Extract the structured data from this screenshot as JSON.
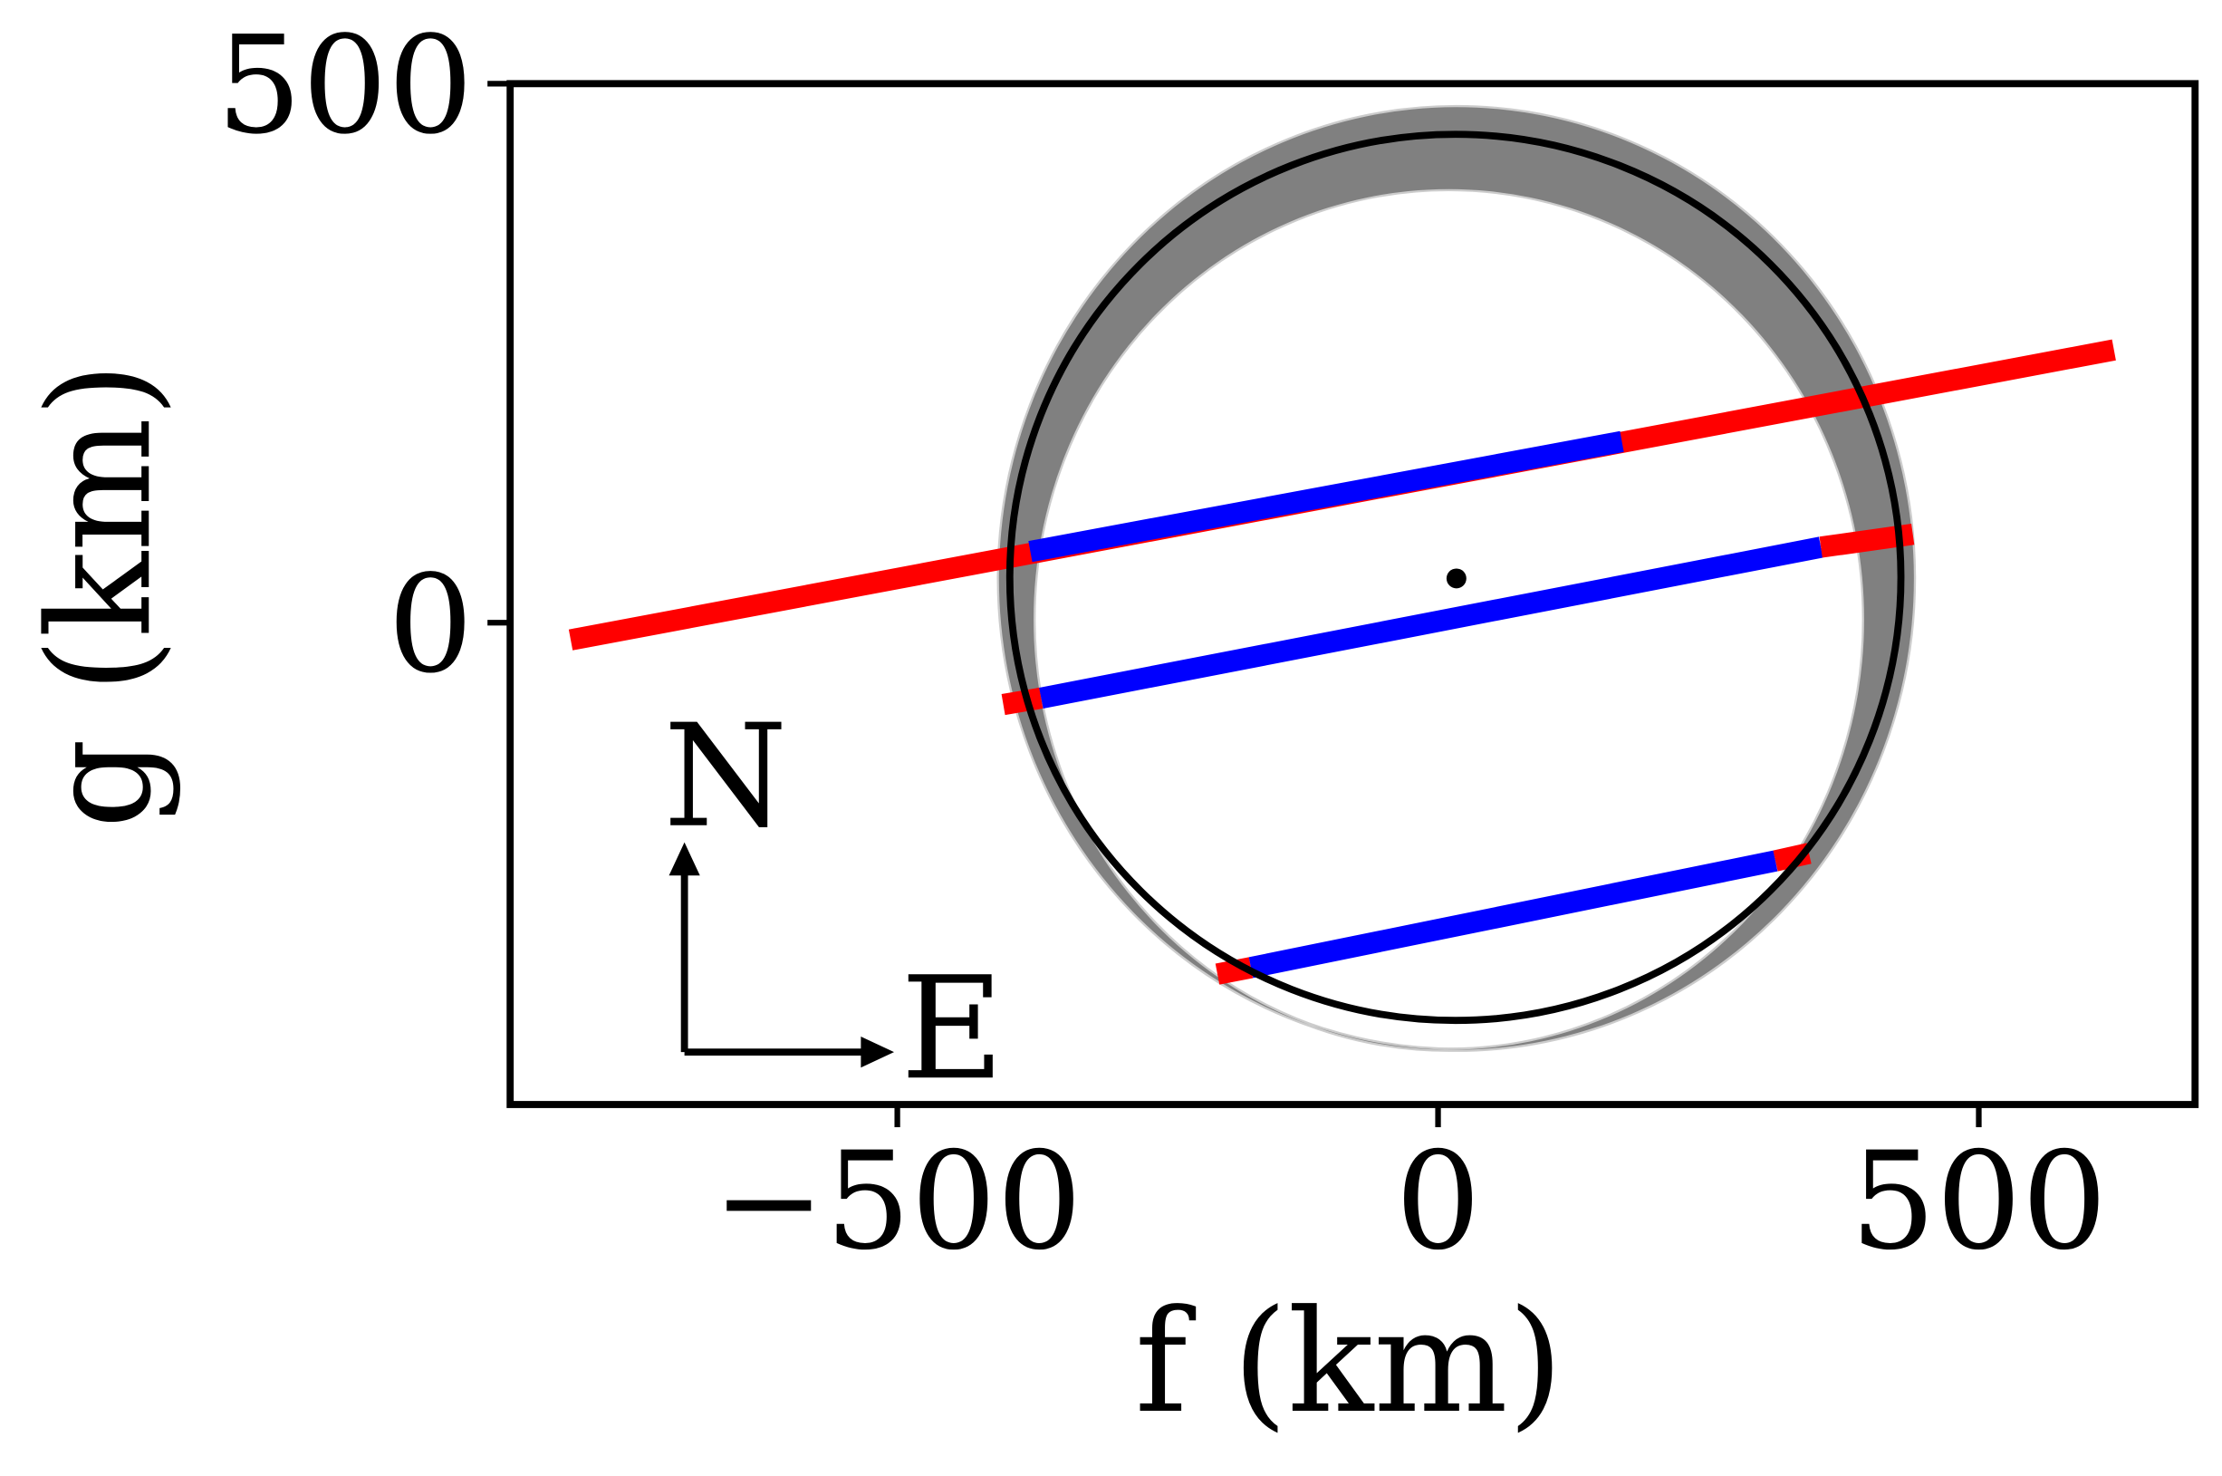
{
  "chart_data": {
    "type": "line",
    "xlabel": "f (km)",
    "ylabel": "g (km)",
    "xlim": [
      -858,
      700
    ],
    "ylim": [
      -447,
      500
    ],
    "xticks": [
      {
        "value": -500,
        "label": "−500"
      },
      0,
      500
    ],
    "yticks": [
      0,
      500
    ],
    "series": [
      {
        "color": "#ff0000",
        "x": [
          -802,
          625
        ],
        "y": [
          -16,
          253
        ]
      },
      {
        "color": "#0000ff",
        "x": [
          -377,
          170
        ],
        "y": [
          66,
          168
        ]
      },
      {
        "color": "#ff0000",
        "x": [
          -402,
          -367
        ],
        "y": [
          -76,
          -70
        ]
      },
      {
        "color": "#0000ff",
        "x": [
          -367,
          354
        ],
        "y": [
          -70,
          70
        ]
      },
      {
        "color": "#ff0000",
        "x": [
          354,
          439
        ],
        "y": [
          70,
          82
        ]
      },
      {
        "color": "#ff0000",
        "x": [
          -204,
          -173
        ],
        "y": [
          -326,
          -320
        ]
      },
      {
        "color": "#0000ff",
        "x": [
          -173,
          312
        ],
        "y": [
          -320,
          -221
        ]
      },
      {
        "color": "#ff0000",
        "x": [
          312,
          343
        ],
        "y": [
          -221,
          -214
        ]
      }
    ],
    "band": {
      "color": "#808080",
      "outer": {
        "center": [
          17,
          41
        ],
        "radii": [
          423,
          437
        ]
      },
      "inner": {
        "center": [
          10,
          3
        ],
        "radii": [
          384,
          399
        ]
      }
    },
    "ellipse": {
      "color": "#000000",
      "center": [
        16,
        42
      ],
      "radii": [
        412,
        411
      ]
    },
    "center_point": {
      "x": 17,
      "y": 41
    },
    "compass": {
      "north": "N",
      "east": "E"
    }
  }
}
